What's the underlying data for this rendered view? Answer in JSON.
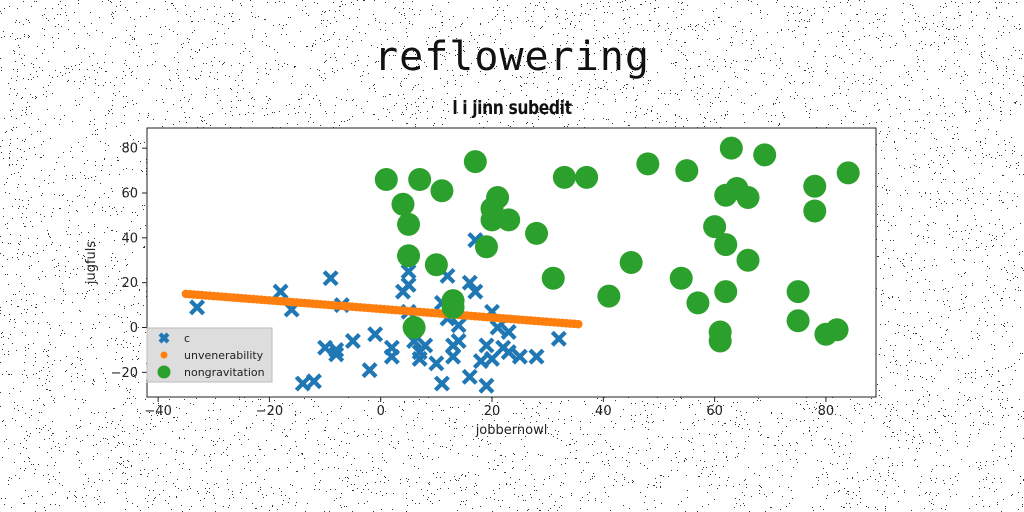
{
  "title": "reflowering",
  "subtitle": "l i jinn subedit",
  "chart_data": {
    "type": "scatter",
    "xlabel": "jobbernowl",
    "ylabel": "jugfuls",
    "xlim": [
      -42,
      89
    ],
    "ylim": [
      -31,
      89
    ],
    "xticks": [
      -40,
      -20,
      0,
      20,
      40,
      60,
      80
    ],
    "yticks": [
      -20,
      0,
      20,
      40,
      60,
      80
    ],
    "legend_position": "lower-left",
    "grid": false,
    "series": [
      {
        "name": "c",
        "marker": "x",
        "color": "#1f77b4",
        "points": [
          [
            -33,
            9
          ],
          [
            -18,
            16
          ],
          [
            -16,
            8
          ],
          [
            -9,
            22
          ],
          [
            -7,
            10
          ],
          [
            -14,
            -25
          ],
          [
            -12,
            -24
          ],
          [
            -10,
            -9
          ],
          [
            -8,
            -10
          ],
          [
            -8,
            -12
          ],
          [
            -5,
            -6
          ],
          [
            -2,
            -19
          ],
          [
            -1,
            -3
          ],
          [
            2,
            -9
          ],
          [
            2,
            -13
          ],
          [
            4,
            16
          ],
          [
            5,
            7
          ],
          [
            5,
            19
          ],
          [
            5,
            25
          ],
          [
            6,
            -6
          ],
          [
            7,
            -11
          ],
          [
            7,
            -14
          ],
          [
            8,
            -8
          ],
          [
            10,
            -16
          ],
          [
            11,
            11
          ],
          [
            11,
            -25
          ],
          [
            12,
            4
          ],
          [
            12,
            23
          ],
          [
            13,
            -8
          ],
          [
            13,
            -13
          ],
          [
            14,
            1
          ],
          [
            14,
            -6
          ],
          [
            16,
            20
          ],
          [
            16,
            -22
          ],
          [
            17,
            16
          ],
          [
            17,
            39
          ],
          [
            18,
            -15
          ],
          [
            19,
            -8
          ],
          [
            19,
            -26
          ],
          [
            20,
            7
          ],
          [
            20,
            -14
          ],
          [
            21,
            0
          ],
          [
            22,
            -9
          ],
          [
            23,
            -2
          ],
          [
            23,
            -11
          ],
          [
            25,
            -13
          ],
          [
            28,
            -13
          ],
          [
            32,
            -5
          ]
        ]
      },
      {
        "name": "unvenerability",
        "marker": "o-small",
        "color": "#ff7f0e",
        "line": {
          "x_start": -35,
          "x_end": 35.5,
          "y_start": 15,
          "y_end": 1.5,
          "count": 100
        }
      },
      {
        "name": "nongravitation",
        "marker": "o",
        "color": "#2ca02c",
        "points": [
          [
            1,
            66
          ],
          [
            4,
            55
          ],
          [
            5,
            46
          ],
          [
            5,
            32
          ],
          [
            6,
            0
          ],
          [
            7,
            66
          ],
          [
            10,
            28
          ],
          [
            11,
            61
          ],
          [
            13,
            12
          ],
          [
            13,
            9
          ],
          [
            17,
            74
          ],
          [
            19,
            36
          ],
          [
            20,
            48
          ],
          [
            20,
            53
          ],
          [
            21,
            58
          ],
          [
            23,
            48
          ],
          [
            28,
            42
          ],
          [
            31,
            22
          ],
          [
            33,
            67
          ],
          [
            37,
            67
          ],
          [
            41,
            14
          ],
          [
            45,
            29
          ],
          [
            48,
            73
          ],
          [
            54,
            22
          ],
          [
            55,
            70
          ],
          [
            57,
            11
          ],
          [
            60,
            45
          ],
          [
            61,
            -2
          ],
          [
            61,
            -6
          ],
          [
            62,
            37
          ],
          [
            62,
            16
          ],
          [
            62,
            59
          ],
          [
            63,
            80
          ],
          [
            64,
            62
          ],
          [
            66,
            58
          ],
          [
            66,
            30
          ],
          [
            69,
            77
          ],
          [
            75,
            16
          ],
          [
            75,
            3
          ],
          [
            78,
            63
          ],
          [
            78,
            52
          ],
          [
            80,
            -3
          ],
          [
            82,
            -1
          ],
          [
            84,
            69
          ]
        ]
      }
    ]
  }
}
